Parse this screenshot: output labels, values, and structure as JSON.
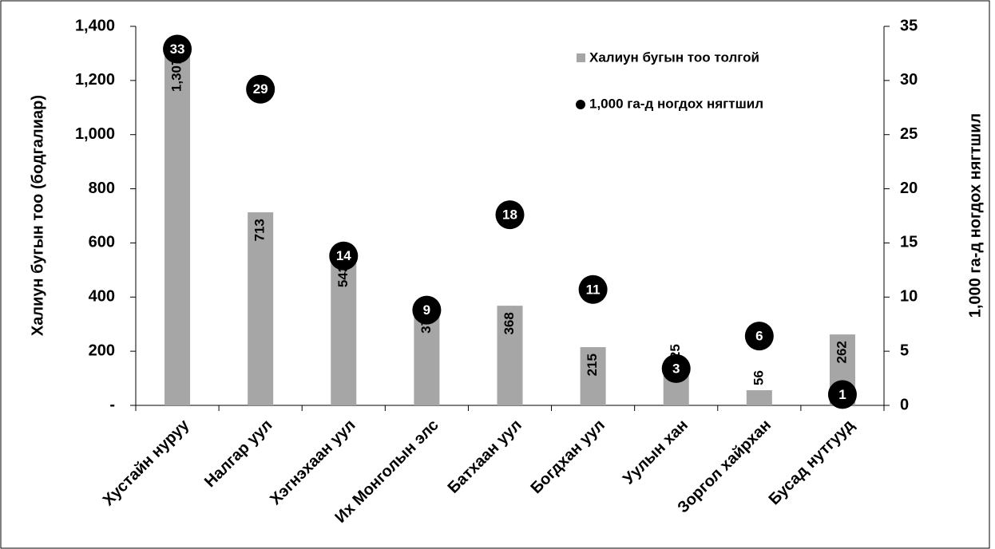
{
  "chart_data": {
    "type": "bar",
    "y_label": "Халиун бугын тоо (бодгалиар)",
    "y2_label": "1,000 га-д ногдох нягтшил",
    "categories": [
      "Хустайн нуруу",
      "Налгар уул",
      "Хэгнэхаан уул",
      "Их Монголын элс",
      "Батхаан уул",
      "Богдхан уул",
      "Уулын хан",
      "Зоргол хайрхан",
      "Бусад нутгууд"
    ],
    "series": [
      {
        "name": "Халиун бугын тоо толгой",
        "color": "#a6a6a6",
        "values": [
          1307,
          713,
          543,
          373,
          368,
          215,
          125,
          56,
          262
        ],
        "value_labels": [
          "1,307",
          "713",
          "543",
          "373",
          "368",
          "215",
          "125",
          "56",
          "262"
        ]
      },
      {
        "name": "1,000 га-д ногдох нягтшил",
        "color": "#000000",
        "axis": "y2",
        "values": [
          32.9,
          29.2,
          13.8,
          8.8,
          17.6,
          10.7,
          3.4,
          6.4,
          1.0
        ],
        "value_labels": [
          "33",
          "29",
          "14",
          "9",
          "18",
          "11",
          "3",
          "6",
          "1"
        ]
      }
    ],
    "ylim": [
      0,
      1400
    ],
    "yticks": [
      {
        "value": 0,
        "label": "-"
      },
      200,
      400,
      600,
      800,
      {
        "value": 1000,
        "label": "1,000"
      },
      {
        "value": 1200,
        "label": "1,200"
      },
      {
        "value": 1400,
        "label": "1,400"
      }
    ],
    "y2lim": [
      0,
      35
    ],
    "y2ticks": [
      0,
      5,
      10,
      15,
      20,
      25,
      30,
      35
    ],
    "legend": "top-right"
  }
}
